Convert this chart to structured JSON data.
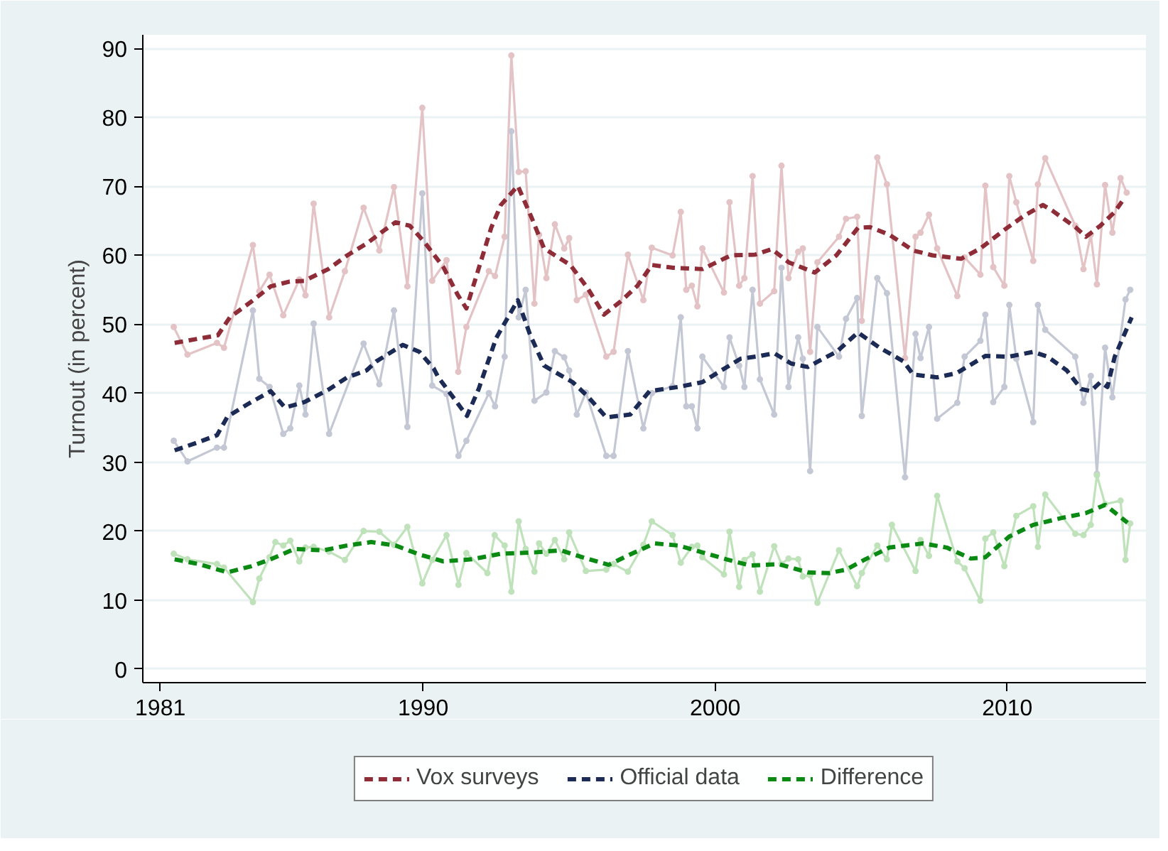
{
  "chart_data": {
    "type": "line",
    "ylabel": "Turnout (in percent)",
    "xlim": [
      1980.4,
      2014.75
    ],
    "ylim": [
      -2,
      92
    ],
    "xticks": [
      1981,
      1990,
      2000,
      2010
    ],
    "yticks": [
      0,
      10,
      20,
      30,
      40,
      50,
      60,
      70,
      80,
      90
    ],
    "grid": "y",
    "legend": "bottom",
    "series": [
      {
        "color": "#e3c3c5",
        "marker": "circle",
        "line_style": "solid",
        "x": [
          1981.46,
          1981.93,
          1982.94,
          1983.18,
          1984.17,
          1984.39,
          1984.74,
          1985.21,
          1985.76,
          1985.97,
          1986.25,
          1986.78,
          1987.32,
          1987.96,
          1988.5,
          1989.0,
          1989.46,
          1989.97,
          1990.31,
          1990.8,
          1991.2,
          1991.48,
          1992.25,
          1992.46,
          1992.79,
          1993.02,
          1993.27,
          1993.51,
          1993.81,
          1993.97,
          1994.22,
          1994.51,
          1994.83,
          1995.0,
          1995.26,
          1995.57,
          1996.27,
          1996.52,
          1997.01,
          1997.54,
          1997.83,
          1998.54,
          1998.82,
          1999.01,
          1999.2,
          1999.39,
          1999.56,
          2000.3,
          2000.49,
          2000.82,
          2001.0,
          2001.28,
          2001.53,
          2002.02,
          2002.27,
          2002.51,
          2002.84,
          2003.0,
          2003.25,
          2003.5,
          2004.24,
          2004.48,
          2004.86,
          2005.02,
          2005.55,
          2005.88,
          2006.5,
          2006.86,
          2007.03,
          2007.32,
          2007.6,
          2008.29,
          2008.54,
          2009.08,
          2009.25,
          2009.52,
          2009.9,
          2010.07,
          2010.31,
          2010.89,
          2011.05,
          2011.3,
          2012.33,
          2012.61,
          2012.86,
          2013.07,
          2013.35,
          2013.6,
          2013.88,
          2014.09
        ],
        "values": [
          49.6,
          45.6,
          47.3,
          46.6,
          61.5,
          54.8,
          57.2,
          51.3,
          56.5,
          54.2,
          67.5,
          51.0,
          57.7,
          66.9,
          60.7,
          69.9,
          55.5,
          81.4,
          56.3,
          59.3,
          43.1,
          49.6,
          57.7,
          57.0,
          62.7,
          89.0,
          72.1,
          72.2,
          53.0,
          63.0,
          56.7,
          64.5,
          61.0,
          62.5,
          53.5,
          54.3,
          45.3,
          46.0,
          60.1,
          53.5,
          61.1,
          60.0,
          66.3,
          55.0,
          55.6,
          52.6,
          61.0,
          54.6,
          67.7,
          55.6,
          56.7,
          71.5,
          53.0,
          54.8,
          73.0,
          56.7,
          60.5,
          61.0,
          46.0,
          59.0,
          62.7,
          65.3,
          65.6,
          50.5,
          74.2,
          70.3,
          45.1,
          62.7,
          63.3,
          65.9,
          61.0,
          54.1,
          59.7,
          57.2,
          70.1,
          58.3,
          55.6,
          71.5,
          67.7,
          59.2,
          70.3,
          74.1,
          64.3,
          58.0,
          63.0,
          55.8,
          70.2,
          63.3,
          71.2,
          69.1
        ]
      },
      {
        "color": "#c4c8d4",
        "marker": "circle",
        "line_style": "solid",
        "x": [
          1981.46,
          1981.93,
          1982.94,
          1983.18,
          1984.17,
          1984.39,
          1984.74,
          1985.21,
          1985.45,
          1985.76,
          1985.97,
          1986.25,
          1986.78,
          1987.96,
          1988.5,
          1989.0,
          1989.46,
          1989.97,
          1990.31,
          1990.8,
          1991.21,
          1991.48,
          1992.25,
          1992.46,
          1992.79,
          1993.02,
          1993.27,
          1993.51,
          1993.81,
          1994.22,
          1994.51,
          1994.83,
          1995.0,
          1995.26,
          1995.57,
          1996.27,
          1996.52,
          1997.01,
          1997.54,
          1997.83,
          1998.54,
          1998.82,
          1999.01,
          1999.2,
          1999.39,
          1999.56,
          2000.3,
          2000.49,
          2000.82,
          2001.0,
          2001.28,
          2001.53,
          2002.02,
          2002.27,
          2002.51,
          2002.84,
          2003.0,
          2003.25,
          2003.5,
          2004.24,
          2004.48,
          2004.86,
          2005.02,
          2005.55,
          2005.88,
          2006.5,
          2006.86,
          2007.03,
          2007.32,
          2007.6,
          2008.29,
          2008.54,
          2009.08,
          2009.25,
          2009.52,
          2009.9,
          2010.07,
          2010.31,
          2010.89,
          2011.05,
          2011.3,
          2012.33,
          2012.61,
          2012.86,
          2013.07,
          2013.35,
          2013.6,
          2014.05,
          2014.21
        ],
        "values": [
          33.1,
          30.1,
          32.1,
          32.1,
          52.0,
          42.1,
          40.9,
          34.1,
          34.9,
          41.1,
          36.9,
          50.1,
          34.1,
          47.2,
          41.3,
          52.0,
          35.1,
          69.0,
          41.1,
          39.9,
          30.9,
          33.1,
          40.0,
          38.1,
          45.3,
          78.0,
          51.0,
          55.0,
          38.9,
          40.1,
          46.1,
          45.2,
          43.3,
          36.9,
          40.1,
          30.9,
          30.9,
          46.1,
          34.9,
          40.0,
          41.0,
          51.0,
          38.1,
          38.1,
          34.9,
          45.3,
          40.9,
          48.1,
          44.0,
          40.9,
          55.0,
          42.0,
          36.9,
          58.2,
          40.9,
          48.1,
          45.0,
          28.7,
          49.6,
          45.3,
          50.8,
          53.8,
          36.7,
          56.7,
          54.5,
          27.8,
          48.6,
          45.1,
          49.6,
          36.3,
          38.6,
          45.3,
          47.6,
          51.4,
          38.7,
          40.9,
          52.8,
          45.0,
          35.8,
          52.8,
          49.2,
          45.3,
          38.6,
          42.5,
          28.3,
          46.6,
          39.4,
          53.6,
          55.0
        ]
      },
      {
        "color": "#bfe2bb",
        "marker": "circle",
        "line_style": "solid",
        "x": [
          1981.46,
          1981.93,
          1982.94,
          1983.18,
          1984.17,
          1984.39,
          1984.74,
          1984.94,
          1985.21,
          1985.45,
          1985.76,
          1985.97,
          1986.25,
          1986.78,
          1987.32,
          1987.96,
          1988.5,
          1989.0,
          1989.46,
          1989.97,
          1990.31,
          1990.8,
          1991.21,
          1991.48,
          1992.2,
          1992.45,
          1992.79,
          1993.02,
          1993.27,
          1993.51,
          1993.81,
          1993.97,
          1994.22,
          1994.51,
          1994.83,
          1995.0,
          1995.57,
          1996.27,
          1996.52,
          1997.01,
          1997.54,
          1997.83,
          1998.54,
          1998.82,
          1999.2,
          1999.39,
          1999.56,
          2000.3,
          2000.49,
          2000.82,
          2001.0,
          2001.28,
          2001.53,
          2002.02,
          2002.27,
          2002.51,
          2002.84,
          2003.0,
          2003.25,
          2003.5,
          2004.24,
          2004.86,
          2005.02,
          2005.55,
          2005.88,
          2006.05,
          2006.86,
          2007.03,
          2007.32,
          2007.6,
          2008.29,
          2008.54,
          2009.08,
          2009.25,
          2009.52,
          2009.9,
          2010.31,
          2010.89,
          2011.05,
          2011.3,
          2012.33,
          2012.61,
          2012.86,
          2013.07,
          2013.35,
          2013.88,
          2014.05,
          2014.21
        ],
        "values": [
          16.7,
          15.9,
          15.2,
          14.7,
          9.7,
          13.1,
          16.2,
          18.4,
          17.9,
          18.6,
          15.6,
          17.6,
          17.7,
          17.0,
          15.8,
          20.0,
          19.9,
          18.0,
          20.6,
          12.4,
          15.8,
          19.4,
          12.2,
          16.8,
          13.9,
          19.4,
          17.9,
          11.2,
          21.4,
          17.4,
          14.1,
          18.2,
          16.7,
          18.7,
          15.9,
          19.8,
          14.2,
          14.4,
          15.2,
          14.1,
          18.0,
          21.4,
          19.4,
          15.4,
          17.7,
          17.9,
          16.2,
          13.7,
          19.9,
          11.9,
          15.8,
          16.6,
          11.2,
          17.8,
          15.2,
          16.0,
          15.9,
          13.4,
          13.6,
          9.6,
          17.2,
          12.0,
          13.9,
          17.9,
          15.9,
          20.9,
          14.2,
          18.7,
          16.4,
          25.1,
          15.6,
          14.6,
          9.9,
          18.9,
          19.8,
          14.9,
          22.2,
          23.6,
          17.7,
          25.3,
          19.6,
          19.4,
          20.9,
          28.1,
          23.9,
          24.4,
          15.8,
          21.1
        ]
      },
      {
        "name": "Vox surveys",
        "color": "#8e2c38",
        "marker": "none",
        "line_style": "dashed",
        "x": [
          1981.49,
          1982.97,
          1983.38,
          1984.12,
          1984.78,
          1985.43,
          1985.93,
          1986.75,
          1987.4,
          1988.06,
          1988.56,
          1989.05,
          1989.54,
          1990.03,
          1990.69,
          1991.18,
          1991.48,
          1992.33,
          1992.66,
          1993.24,
          1993.73,
          1994.14,
          1995.04,
          1995.62,
          1996.19,
          1996.76,
          1997.34,
          1997.83,
          1998.57,
          1999.56,
          2000.54,
          2001.36,
          2001.94,
          2002.51,
          2003.41,
          2004.15,
          2004.89,
          2005.3,
          2005.96,
          2006.78,
          2007.44,
          2008.42,
          2009.08,
          2009.9,
          2010.56,
          2011.22,
          2011.54,
          2012.36,
          2012.69,
          2013.19,
          2013.68,
          2014.01
        ],
        "values": [
          47.3,
          48.4,
          51.0,
          53.3,
          55.5,
          56.2,
          56.3,
          58.0,
          60.0,
          61.7,
          63.3,
          64.8,
          64.3,
          62.0,
          58.3,
          54.3,
          52.3,
          64.0,
          67.3,
          70.1,
          65.3,
          61.0,
          58.6,
          55.3,
          51.4,
          53.3,
          55.6,
          58.6,
          58.2,
          58.0,
          60.0,
          60.1,
          60.9,
          59.0,
          57.5,
          60.0,
          64.0,
          64.1,
          63.0,
          60.7,
          60.0,
          59.5,
          61.0,
          63.7,
          65.7,
          67.3,
          66.5,
          64.0,
          62.7,
          64.3,
          66.3,
          68.3
        ]
      },
      {
        "name": "Official data",
        "color": "#1c2b55",
        "marker": "none",
        "line_style": "dashed",
        "x": [
          1981.49,
          1982.31,
          1982.94,
          1983.3,
          1983.95,
          1984.78,
          1985.27,
          1985.93,
          1986.75,
          1987.4,
          1988.06,
          1988.39,
          1989.3,
          1989.87,
          1990.36,
          1990.52,
          1991.5,
          1991.9,
          1992.5,
          1993.24,
          1993.65,
          1994.14,
          1995.12,
          1995.62,
          1996.27,
          1997.09,
          1997.75,
          1998.73,
          1999.56,
          2000.21,
          2000.87,
          2001.53,
          2002.02,
          2002.6,
          2003.17,
          2003.83,
          2004.15,
          2004.89,
          2005.63,
          2006.45,
          2006.78,
          2007.6,
          2008.26,
          2009.25,
          2010.07,
          2010.89,
          2011.38,
          2012.04,
          2012.53,
          2012.86,
          2013.19,
          2013.43,
          2013.68,
          2014.26
        ],
        "values": [
          31.7,
          32.9,
          33.9,
          36.6,
          38.3,
          40.3,
          37.9,
          38.7,
          40.5,
          42.3,
          43.3,
          44.6,
          47.0,
          46.0,
          43.6,
          42.3,
          36.7,
          40.6,
          48.0,
          53.5,
          48.6,
          44.0,
          41.6,
          39.6,
          36.5,
          36.9,
          40.3,
          40.9,
          41.6,
          43.3,
          45.0,
          45.4,
          45.8,
          44.3,
          43.8,
          45.3,
          46.0,
          48.8,
          46.6,
          44.6,
          42.7,
          42.3,
          42.9,
          45.4,
          45.3,
          46.0,
          45.3,
          43.3,
          40.6,
          40.3,
          41.6,
          40.9,
          45.3,
          51.0
        ]
      },
      {
        "name": "Difference",
        "color": "#0a8a12",
        "marker": "none",
        "line_style": "dashed",
        "x": [
          1981.49,
          1982.31,
          1983.3,
          1984.12,
          1984.78,
          1985.6,
          1986.58,
          1987.4,
          1988.22,
          1989.05,
          1989.87,
          1990.69,
          1991.67,
          1992.66,
          1993.81,
          1994.71,
          1995.45,
          1996.35,
          1997.09,
          1997.92,
          1998.73,
          1999.56,
          2000.38,
          2001.2,
          2002.18,
          2003.17,
          2003.91,
          2004.48,
          2005.14,
          2005.96,
          2007.11,
          2007.93,
          2008.75,
          2009.25,
          2010.07,
          2010.89,
          2011.87,
          2012.69,
          2013.35,
          2014.12
        ],
        "values": [
          15.9,
          15.2,
          14.0,
          14.9,
          15.9,
          17.4,
          17.2,
          17.9,
          18.4,
          17.9,
          16.6,
          15.6,
          15.9,
          16.7,
          16.9,
          17.2,
          16.2,
          15.1,
          16.6,
          18.2,
          17.9,
          16.9,
          15.9,
          15.0,
          15.2,
          14.0,
          13.9,
          14.4,
          15.9,
          17.6,
          18.2,
          17.6,
          16.0,
          16.2,
          19.2,
          20.9,
          21.9,
          22.6,
          23.8,
          21.2
        ]
      }
    ]
  }
}
